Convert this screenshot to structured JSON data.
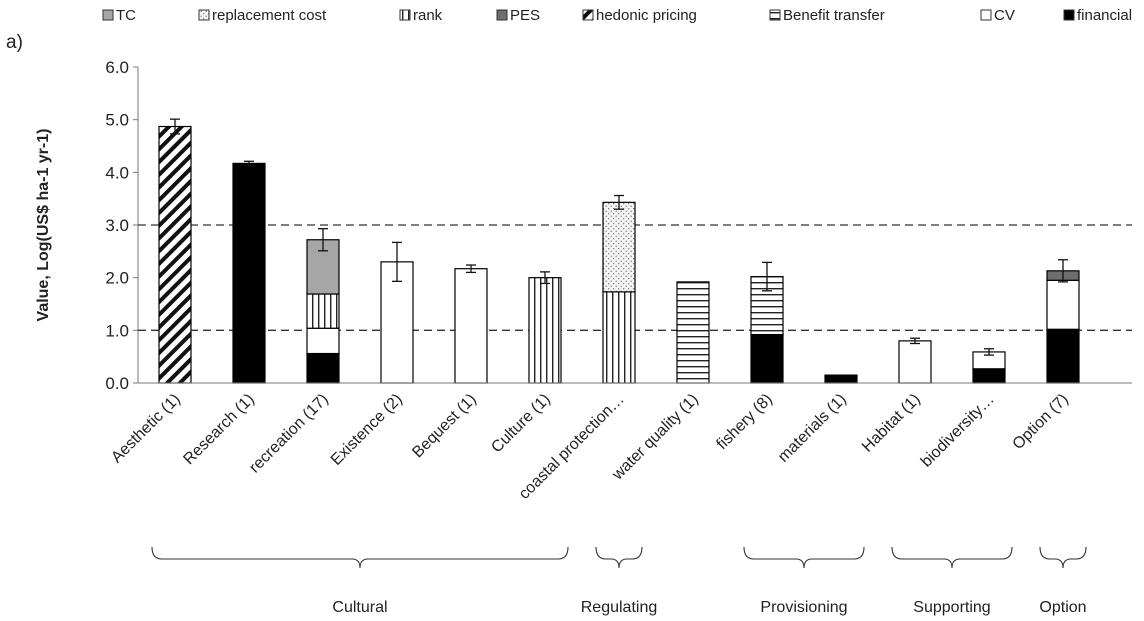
{
  "panel_label": "a)",
  "legend": [
    {
      "label": "TC",
      "pattern": "tc"
    },
    {
      "label": "replacement cost",
      "pattern": "replacement"
    },
    {
      "label": "rank",
      "pattern": "rank"
    },
    {
      "label": "PES",
      "pattern": "pes"
    },
    {
      "label": "hedonic pricing",
      "pattern": "hedonic"
    },
    {
      "label": "Benefit transfer",
      "pattern": "benefit"
    },
    {
      "label": "CV",
      "pattern": "cv"
    },
    {
      "label": "financial",
      "pattern": "financial"
    }
  ],
  "chart_data": {
    "type": "bar",
    "stacked": true,
    "title": "",
    "xlabel": "",
    "ylabel": "Value, Log(US$ ha-1 yr-1)",
    "ylim": [
      0,
      6
    ],
    "yticks": [
      "0.0",
      "1.0",
      "2.0",
      "3.0",
      "4.0",
      "5.0",
      "6.0"
    ],
    "grid": false,
    "legend_position": "top",
    "reference_lines": [
      1,
      3
    ],
    "categories": [
      "Aesthetic (1)",
      "Research (1)",
      "recreation (17)",
      "Existence (2)",
      "Bequest (1)",
      "Culture (1)",
      "coastal protection…",
      "water quality (1)",
      "fishery (8)",
      "materials (1)",
      "Habitat (1)",
      "biodiversity…",
      "Option (7)"
    ],
    "series": [
      {
        "name": "financial",
        "values": [
          0,
          4.17,
          0.56,
          0,
          0,
          0,
          0,
          0,
          0.92,
          0.15,
          0,
          0.27,
          1.02
        ]
      },
      {
        "name": "CV",
        "values": [
          0,
          0,
          0.48,
          2.3,
          2.17,
          0,
          0,
          0,
          0,
          0,
          0.8,
          0.32,
          0.93
        ]
      },
      {
        "name": "Benefit transfer",
        "values": [
          0,
          0,
          0,
          0,
          0,
          0,
          0,
          1.92,
          1.1,
          0,
          0,
          0,
          0
        ]
      },
      {
        "name": "hedonic pricing",
        "values": [
          4.87,
          0,
          0,
          0,
          0,
          0,
          0,
          0,
          0,
          0,
          0,
          0,
          0
        ]
      },
      {
        "name": "PES",
        "values": [
          0,
          0,
          0,
          0,
          0,
          0,
          0,
          0,
          0,
          0,
          0,
          0,
          0.18
        ]
      },
      {
        "name": "rank",
        "values": [
          0,
          0,
          0.65,
          0,
          0,
          2.0,
          1.73,
          0,
          0,
          0,
          0,
          0,
          0
        ]
      },
      {
        "name": "replacement cost",
        "values": [
          0,
          0,
          0,
          0,
          0,
          0,
          1.7,
          0,
          0,
          0,
          0,
          0,
          0
        ]
      },
      {
        "name": "TC",
        "values": [
          0,
          0,
          1.03,
          0,
          0,
          0,
          0,
          0,
          0,
          0,
          0,
          0,
          0
        ]
      }
    ],
    "error_bars": [
      0.14,
      0.04,
      0.21,
      0.37,
      0.07,
      0.11,
      0.13,
      0,
      0.27,
      0,
      0.05,
      0.06,
      0.21
    ],
    "groups": [
      {
        "label": "Cultural",
        "from": 0,
        "to": 5
      },
      {
        "label": "Regulating",
        "from": 6,
        "to": 6
      },
      {
        "label": "Provisioning",
        "from": 8,
        "to": 9
      },
      {
        "label": "Supporting",
        "from": 10,
        "to": 11
      },
      {
        "label": "Option",
        "from": 12,
        "to": 12
      }
    ]
  }
}
